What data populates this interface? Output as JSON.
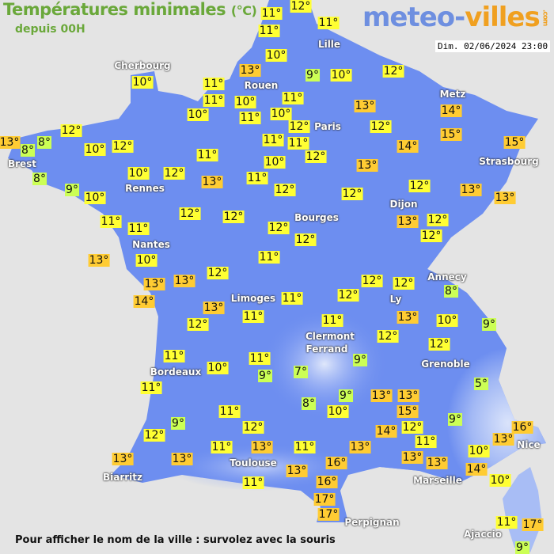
{
  "header": {
    "title": "Températures minimales",
    "unit": "(°C)",
    "subtitle": "depuis 00H",
    "logo": "meteo-villes.com",
    "datetime": "Dim. 02/06/2024 23:00"
  },
  "footer": "Pour afficher le nom de la ville : survolez avec la souris",
  "colors": {
    "land": "#6d8ef0",
    "mountain": "#dce6fb",
    "background": "#e4e4e4",
    "cold": "#ccff55",
    "mild": "#ffff33",
    "warm": "#ffcc33"
  },
  "cities": [
    "Lille",
    "Cherbourg",
    "Rouen",
    "Paris",
    "Metz",
    "Brest",
    "Strasbourg",
    "Rennes",
    "Dijon",
    "Bourges",
    "Nantes",
    "Annecy",
    "Limoges",
    "Ly",
    "Clermont",
    "Ferrand",
    "Grenoble",
    "Bordeaux",
    "Nice",
    "Toulouse",
    "Biarritz",
    "Marseille",
    "Perpignan",
    "Ajaccio"
  ],
  "temperatures": [
    11,
    12,
    11,
    11,
    10,
    13,
    9,
    10,
    12,
    10,
    11,
    11,
    10,
    11,
    10,
    11,
    10,
    13,
    12,
    12,
    14,
    15,
    13,
    8,
    8,
    12,
    10,
    12,
    11,
    11,
    12,
    14,
    15,
    11,
    10,
    13,
    8,
    9,
    10,
    12,
    13,
    11,
    10,
    12,
    12,
    12,
    13,
    13,
    11,
    11,
    12,
    12,
    12,
    12,
    13,
    12,
    12,
    13,
    10,
    11,
    12,
    13,
    13,
    12,
    12,
    14,
    11,
    12,
    8,
    13,
    12,
    11,
    13,
    10,
    9,
    11,
    12,
    12,
    11,
    11,
    9,
    10,
    9,
    7,
    5,
    11,
    9,
    13,
    13,
    8,
    10,
    15,
    9,
    11,
    9,
    12,
    14,
    12,
    16,
    13,
    12,
    11,
    13,
    11,
    13,
    11,
    13,
    10,
    13,
    13,
    16,
    13,
    14,
    13,
    11,
    16,
    10,
    17,
    17,
    11,
    17,
    9
  ]
}
